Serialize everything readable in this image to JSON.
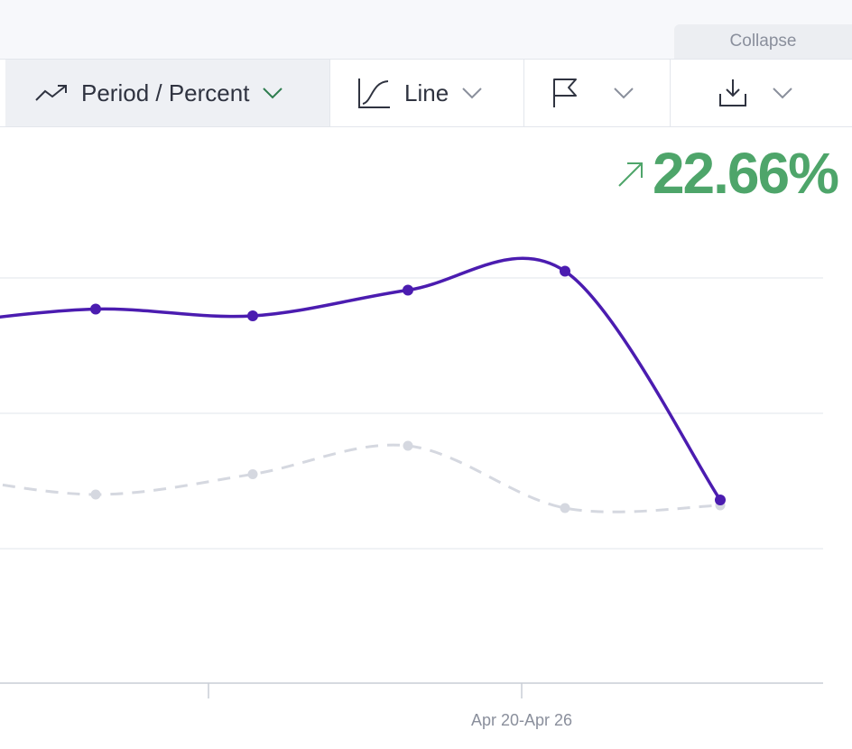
{
  "header": {
    "collapse_label": "Collapse"
  },
  "toolbar": {
    "period_label": "Period / Percent",
    "chart_type_label": "Line",
    "period_icon": "trend-up-icon",
    "line_icon": "curve-line-icon",
    "flag_icon": "flag-icon",
    "download_icon": "download-icon",
    "accent_color": "#2e7d4f"
  },
  "summary": {
    "change_value": "22.66%",
    "change_direction": "up",
    "change_color": "#4ea56a"
  },
  "chart_data": {
    "type": "line",
    "title": "",
    "xlabel": "",
    "ylabel": "",
    "x_tick_labels": [
      "",
      "Apr 20-Apr 26"
    ],
    "grid": true,
    "series": [
      {
        "style": "solid",
        "color": "#4b1cb0",
        "values": [
          0.66,
          0.77,
          0.72,
          0.91,
          1.05,
          -0.64
        ]
      },
      {
        "style": "dashed",
        "color": "#d5d8e0",
        "values": [
          -0.45,
          -0.6,
          -0.45,
          -0.24,
          -0.7,
          -0.68
        ]
      }
    ]
  }
}
